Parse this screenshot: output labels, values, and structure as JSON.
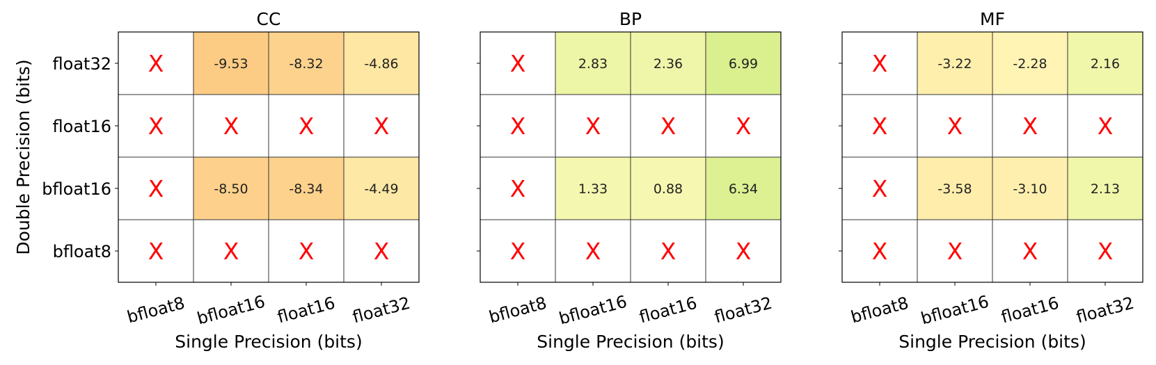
{
  "chart_data": [
    {
      "type": "heatmap",
      "title": "CC",
      "xlabel": "Single Precision (bits)",
      "ylabel": "Double Precision (bits)",
      "x_categories": [
        "bfloat8",
        "bfloat16",
        "float16",
        "float32"
      ],
      "y_categories": [
        "float32",
        "float16",
        "bfloat16",
        "bfloat8"
      ],
      "values": [
        [
          null,
          -9.53,
          -8.32,
          -4.86
        ],
        [
          null,
          null,
          null,
          null
        ],
        [
          null,
          -8.5,
          -8.34,
          -4.49
        ],
        [
          null,
          null,
          null,
          null
        ]
      ],
      "missing_marker": "X"
    },
    {
      "type": "heatmap",
      "title": "BP",
      "xlabel": "Single Precision (bits)",
      "ylabel": "",
      "x_categories": [
        "bfloat8",
        "bfloat16",
        "float16",
        "float32"
      ],
      "y_categories": [
        "float32",
        "float16",
        "bfloat16",
        "bfloat8"
      ],
      "values": [
        [
          null,
          2.83,
          2.36,
          6.99
        ],
        [
          null,
          null,
          null,
          null
        ],
        [
          null,
          1.33,
          0.88,
          6.34
        ],
        [
          null,
          null,
          null,
          null
        ]
      ],
      "missing_marker": "X"
    },
    {
      "type": "heatmap",
      "title": "MF",
      "xlabel": "Single Precision (bits)",
      "ylabel": "",
      "x_categories": [
        "bfloat8",
        "bfloat16",
        "float16",
        "float32"
      ],
      "y_categories": [
        "float32",
        "float16",
        "bfloat16",
        "bfloat8"
      ],
      "values": [
        [
          null,
          -3.22,
          -2.28,
          2.16
        ],
        [
          null,
          null,
          null,
          null
        ],
        [
          null,
          -3.58,
          -3.1,
          2.13
        ],
        [
          null,
          null,
          null,
          null
        ]
      ],
      "missing_marker": "X"
    }
  ],
  "colors": {
    "scale_min": "#fdc981",
    "scale_mid": "#fffbbc",
    "scale_max": "#d5ed88",
    "missing_cell": "#ffffff",
    "missing_marker": "#ff0000"
  },
  "color_scale_range": [
    -10,
    8
  ]
}
